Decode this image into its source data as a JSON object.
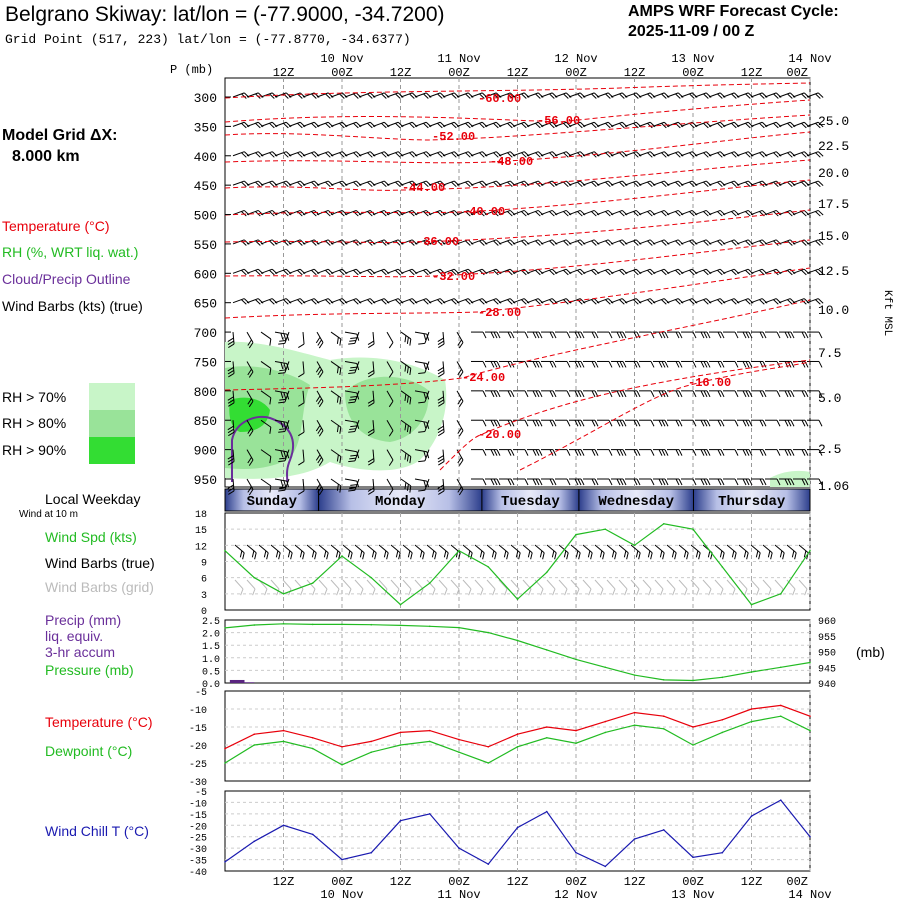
{
  "header": {
    "title": "Belgrano Skiway:  lat/lon = (-77.9000, -34.7200)",
    "subtitle": "Grid Point (517, 223) lat/lon = (-77.8770, -34.6377)",
    "cycle_label": "AMPS WRF Forecast Cycle:",
    "cycle_value": "2025-11-09 / 00  Z"
  },
  "legend": {
    "model_grid_label": "Model Grid ΔX:",
    "model_grid_value": "8.000 km",
    "temperature": "Temperature (°C)",
    "rh": "RH (%, WRT liq. wat.)",
    "cloud": "Cloud/Precip Outline",
    "wind": "Wind Barbs (kts) (true)",
    "rh70": "RH > 70%",
    "rh80": "RH > 80%",
    "rh90": "RH > 90%"
  },
  "colors": {
    "temperature": "#e8000b",
    "rh": "#22bb22",
    "cloud": "#6a2f9a",
    "rh70": "#c8f5c8",
    "rh80": "#99e399",
    "rh90": "#33dd33",
    "wind_chill": "#1a1ab0",
    "pressure": "#22bb22",
    "grid_barb": "#bbbbbb",
    "precip": "#5a2580"
  },
  "time_axis": {
    "top_dates": [
      "10 Nov",
      "11 Nov",
      "12 Nov",
      "13 Nov",
      "14 Nov"
    ],
    "hour_labels": [
      "12Z",
      "00Z",
      "12Z",
      "00Z",
      "12Z",
      "00Z",
      "12Z",
      "00Z",
      "12Z",
      "00Z"
    ],
    "bottom_dates": [
      "10 Nov",
      "11 Nov",
      "12 Nov",
      "13 Nov",
      "14 Nov"
    ]
  },
  "days": {
    "caption": "Local Weekday",
    "wind_caption": "Wind at 10 m",
    "names": [
      "Sunday",
      "Monday",
      "Tuesday",
      "Wednesday",
      "Thursday"
    ]
  },
  "panel_labels": {
    "wind_spd": "Wind Spd (kts)",
    "wind_barbs_true": "Wind Barbs (true)",
    "wind_barbs_grid": "Wind Barbs (grid)",
    "precip_1": "Precip (mm)",
    "precip_2": "liq. equiv.",
    "precip_3": "3-hr accum",
    "pressure": "Pressure (mb)",
    "pressure_units": "(mb)",
    "temperature": "Temperature (°C)",
    "dewpoint": "Dewpoint (°C)",
    "wind_chill": "Wind Chill T (°C)"
  },
  "chart_data": [
    {
      "type": "time-height cross section",
      "name": "sounding",
      "ylabel": "P (mb)",
      "y_right_label": "Kft MSL",
      "pressure_levels": [
        300,
        350,
        400,
        450,
        500,
        550,
        600,
        650,
        700,
        750,
        800,
        850,
        900,
        950
      ],
      "height_levels_kft": [
        "25.0",
        "22.5",
        "20.0",
        "17.5",
        "15.0",
        "12.5",
        "10.0",
        "7.5",
        "5.0",
        "2.5",
        "1.06"
      ],
      "temperature_labels": [
        "-60.00",
        "-56.00",
        "-52.00",
        "-48.00",
        "-44.00",
        "-40.00",
        "-36.00",
        "-32.00",
        "-28.00",
        "-24.00",
        "-20.00",
        "-16.00"
      ],
      "forecast_hours": [
        0,
        120
      ]
    },
    {
      "type": "line",
      "name": "wind_speed",
      "ylabel": "Wind Spd (kts)",
      "y_ticks": [
        0,
        3,
        6,
        9,
        12,
        15,
        18
      ],
      "ylim": [
        0,
        18
      ],
      "x_hours": [
        0,
        6,
        12,
        18,
        24,
        30,
        36,
        42,
        48,
        54,
        60,
        66,
        72,
        78,
        84,
        90,
        96,
        102,
        108,
        114,
        120
      ],
      "values": [
        11,
        6,
        3,
        5,
        10,
        6,
        1,
        5,
        11,
        8,
        2,
        7,
        14,
        15,
        12,
        16,
        15,
        8,
        1,
        3,
        11
      ]
    },
    {
      "type": "line+bar",
      "name": "precip_pressure",
      "precip_ticks": [
        "0.0",
        "0.5",
        "1.0",
        "1.5",
        "2.0",
        "2.5"
      ],
      "precip_ylim": [
        0,
        2.5
      ],
      "pressure_ticks": [
        940,
        945,
        950,
        955,
        960
      ],
      "pressure_ylim": [
        940,
        960
      ],
      "x_hours": [
        0,
        6,
        12,
        18,
        24,
        30,
        36,
        42,
        48,
        54,
        60,
        66,
        72,
        78,
        84,
        90,
        96,
        102,
        108,
        114,
        120
      ],
      "pressure": [
        957.5,
        958.4,
        958.8,
        958.6,
        958.6,
        958.5,
        958.3,
        958.0,
        957.6,
        956.0,
        953.5,
        950.5,
        947.5,
        945.0,
        942.5,
        941.0,
        940.8,
        941.8,
        943.5,
        945.0,
        946.5
      ],
      "precip": [
        {
          "start_hour": 1,
          "end_hour": 4,
          "value": 0.12
        },
        {
          "start_hour": 4,
          "end_hour": 6,
          "value": 0.03
        }
      ]
    },
    {
      "type": "line",
      "name": "temperature_dewpoint",
      "y_ticks": [
        -5,
        -10,
        -15,
        -20,
        -25,
        -30
      ],
      "ylim": [
        -30,
        -5
      ],
      "x_hours": [
        0,
        6,
        12,
        18,
        24,
        30,
        36,
        42,
        48,
        54,
        60,
        66,
        72,
        78,
        84,
        90,
        96,
        102,
        108,
        114,
        120
      ],
      "series": [
        {
          "name": "Temperature",
          "values": [
            -21,
            -17,
            -16,
            -18,
            -20.5,
            -19,
            -16.5,
            -16,
            -18.5,
            -20.5,
            -17,
            -15,
            -16,
            -13.5,
            -11,
            -12,
            -15,
            -13,
            -10,
            -9,
            -12
          ]
        },
        {
          "name": "Dewpoint",
          "values": [
            -25,
            -20,
            -19,
            -21,
            -25.5,
            -22,
            -20,
            -19,
            -22,
            -25,
            -20.5,
            -18,
            -19.5,
            -16.5,
            -14.5,
            -15.5,
            -20,
            -16.5,
            -13.5,
            -12,
            -16
          ]
        }
      ]
    },
    {
      "type": "line",
      "name": "wind_chill",
      "ylabel": "Wind Chill T (°C)",
      "y_ticks": [
        -5,
        -10,
        -15,
        -20,
        -25,
        -30,
        -35,
        -40
      ],
      "ylim": [
        -40,
        -5
      ],
      "x_hours": [
        0,
        6,
        12,
        18,
        24,
        30,
        36,
        42,
        48,
        54,
        60,
        66,
        72,
        78,
        84,
        90,
        96,
        102,
        108,
        114,
        120
      ],
      "values": [
        -36,
        -27,
        -20,
        -24,
        -35,
        -32,
        -18,
        -15,
        -30,
        -37,
        -21,
        -14,
        -32,
        -38,
        -26,
        -22,
        -34,
        -32,
        -16,
        -9,
        -25
      ]
    }
  ]
}
